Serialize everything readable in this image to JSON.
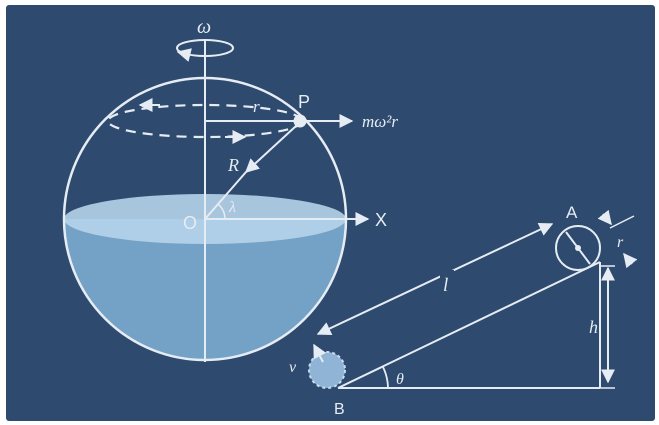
{
  "colors": {
    "background": "#2e4a6e",
    "line": "#e6ecf3",
    "water": "#7fb1d6",
    "water_surface": "#b6d3ea",
    "ball": "#8fb4d6"
  },
  "labels": {
    "omega": "ω",
    "point_p": "P",
    "force": "mω²r",
    "radius_small_sphere": "r",
    "radius_big": "R",
    "latitude": "λ",
    "origin": "O",
    "x_axis": "X",
    "point_a": "A",
    "radius_small_incline": "r",
    "length": "l",
    "height": "h",
    "velocity": "v",
    "angle": "θ",
    "point_b": "B"
  }
}
